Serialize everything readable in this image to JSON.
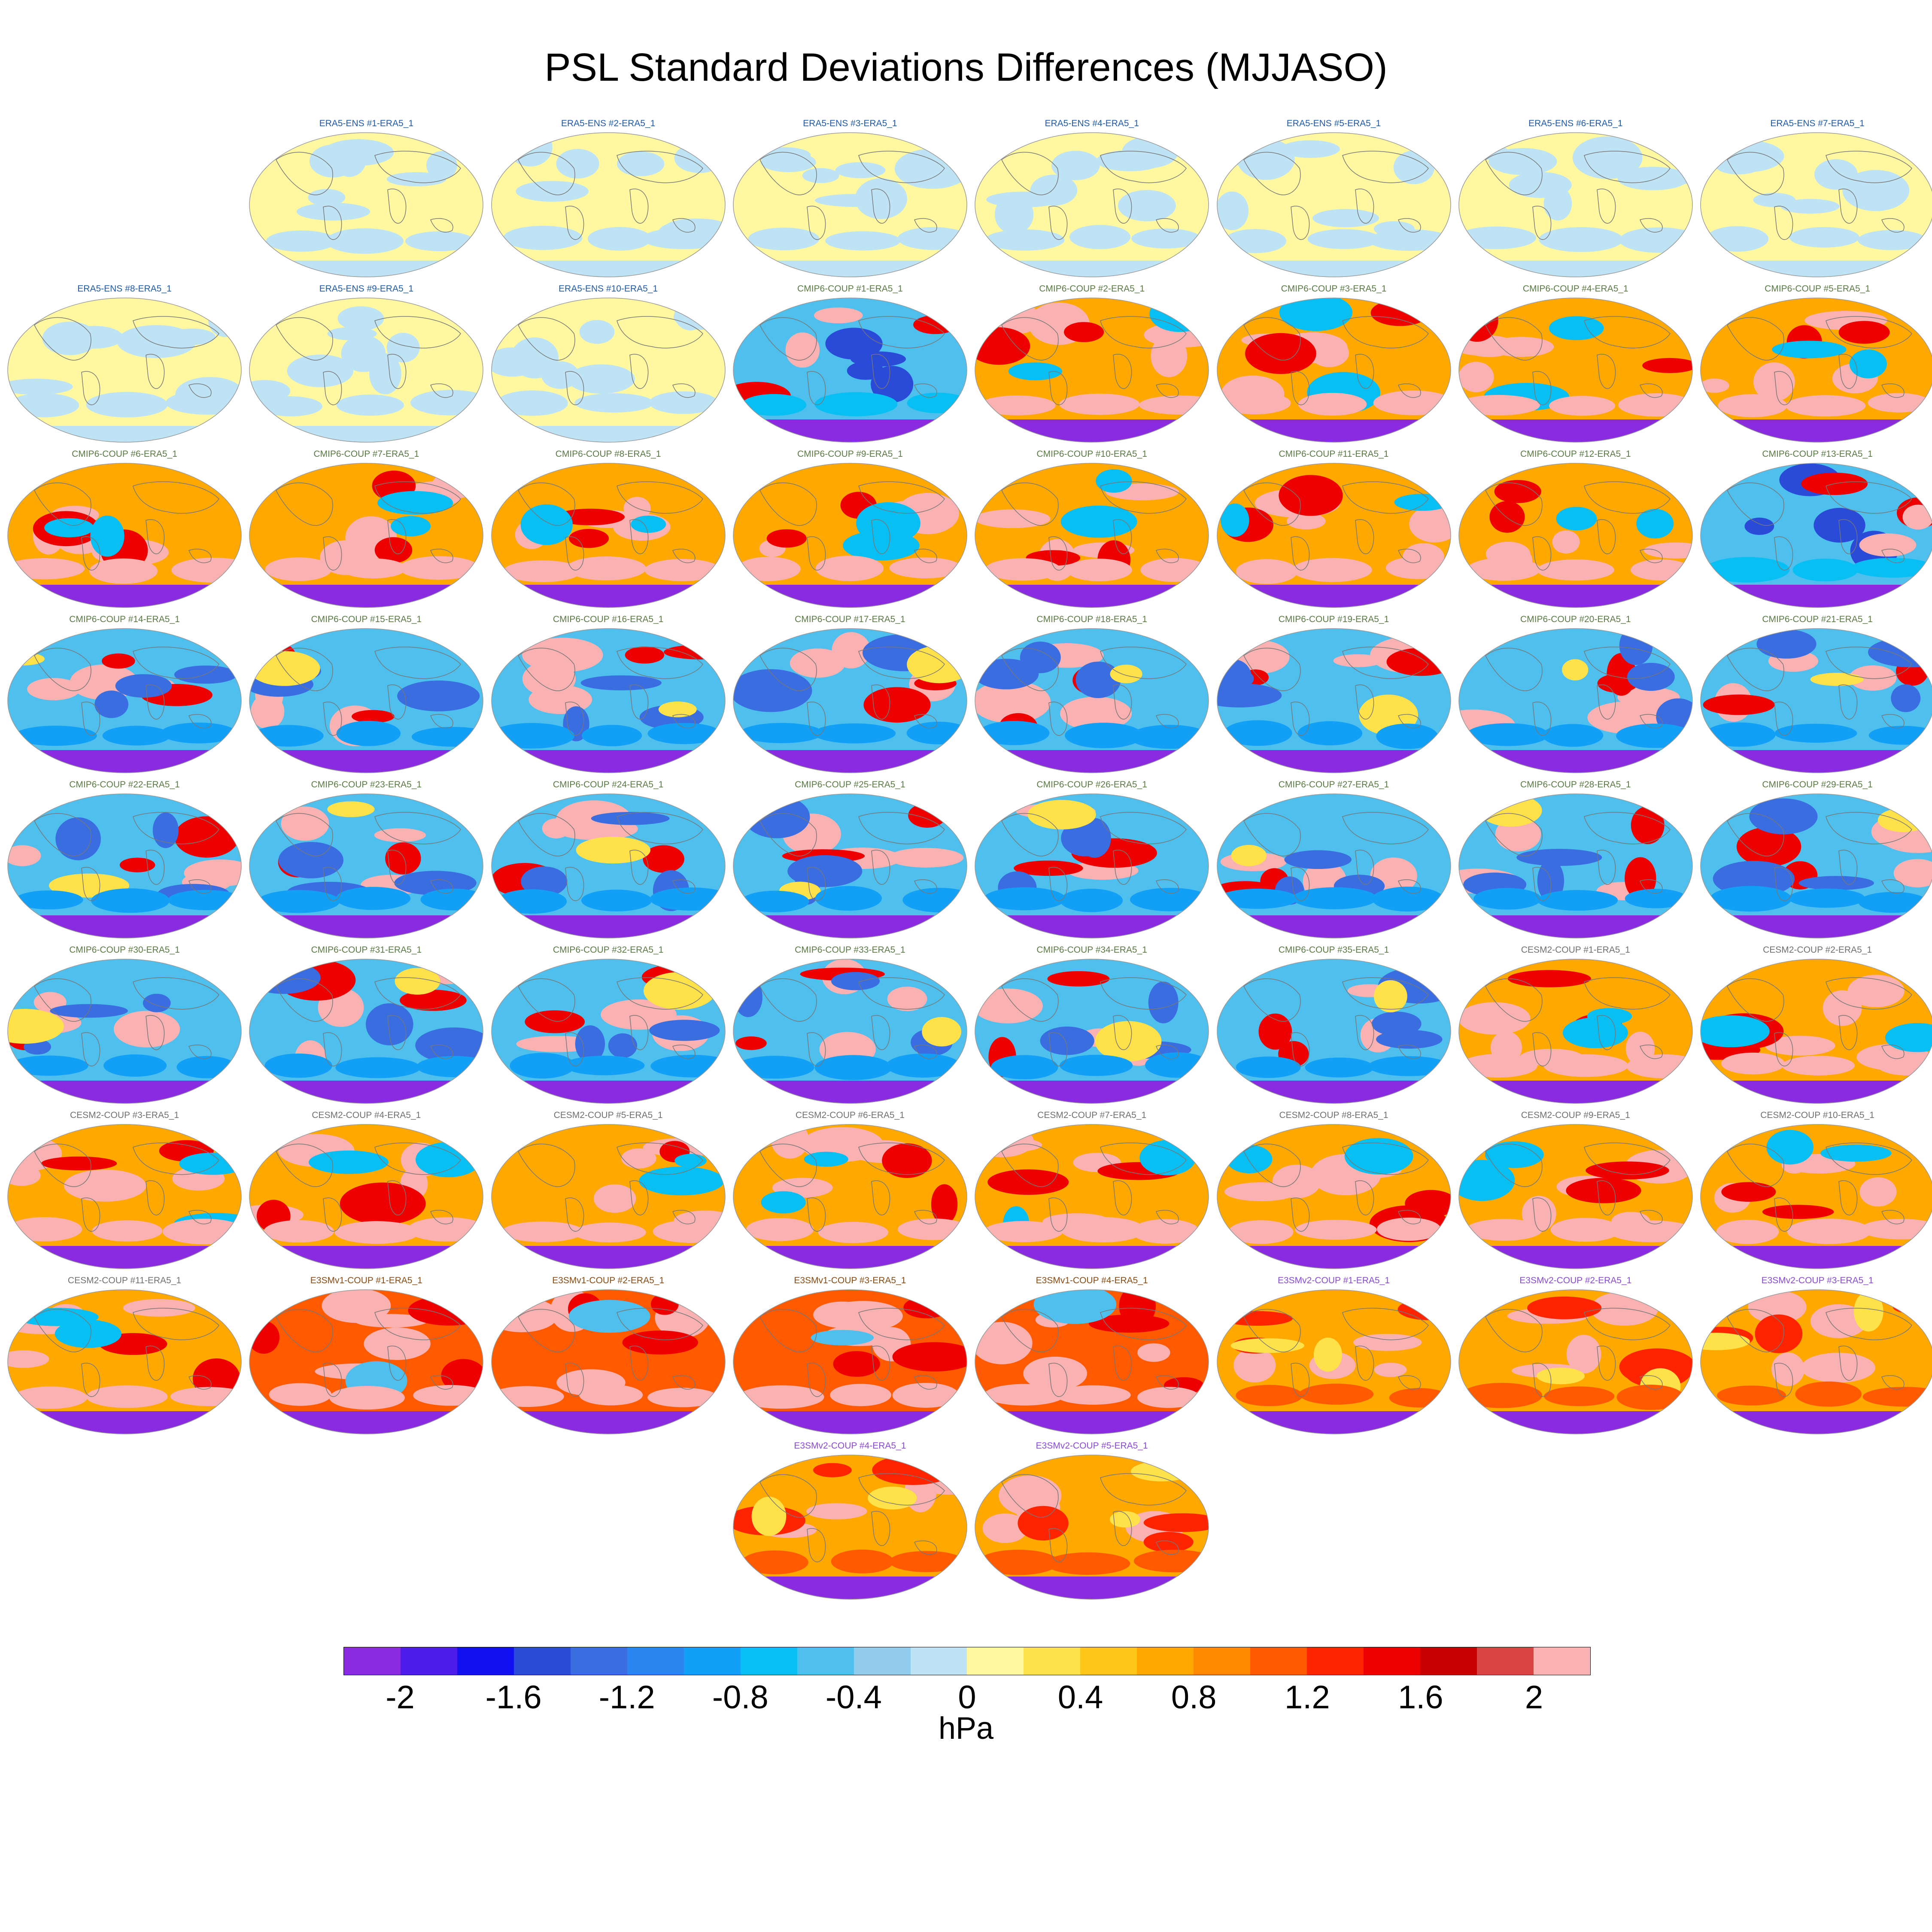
{
  "title": "PSL Standard Deviations Differences (MJJASO)",
  "chart_data": {
    "type": "heatmap",
    "title": "PSL Standard Deviations Differences (MJJASO)",
    "colorbar": {
      "units": "hPa",
      "tick_labels": [
        "-2",
        "-1.6",
        "-1.2",
        "-0.8",
        "-0.4",
        "0",
        "0.4",
        "0.8",
        "1.2",
        "1.6",
        "2"
      ],
      "tick_values": [
        -2,
        -1.6,
        -1.2,
        -0.8,
        -0.4,
        0,
        0.4,
        0.8,
        1.2,
        1.6,
        2
      ],
      "range": [
        -2.2,
        2.2
      ],
      "colors": [
        "#8a2be2",
        "#4c1de8",
        "#1010f0",
        "#2a4ad8",
        "#3a6ee0",
        "#2a86f0",
        "#12a0f6",
        "#08bff4",
        "#4fc0ee",
        "#92ccec",
        "#bde3f5",
        "#fff8a0",
        "#ffe24a",
        "#ffc61a",
        "#ffa800",
        "#ff8a00",
        "#ff5a00",
        "#ff2400",
        "#ee0000",
        "#c80000",
        "#dc4444",
        "#f9b1b1"
      ]
    },
    "groups": [
      {
        "name": "ERA5-ENS",
        "title_color": "#1f5aa8"
      },
      {
        "name": "CMIP6-COUP",
        "title_color": "#5a7a44"
      },
      {
        "name": "CESM2-COUP",
        "title_color": "#707070"
      },
      {
        "name": "E3SMv1-COUP",
        "title_color": "#8a4a10"
      },
      {
        "name": "E3SMv2-COUP",
        "title_color": "#8a4ad8"
      }
    ],
    "panels": [
      {
        "row": 0,
        "col": 1,
        "label": "ERA5-ENS   #1-ERA5_1",
        "group": 0,
        "pattern": "era5"
      },
      {
        "row": 0,
        "col": 2,
        "label": "ERA5-ENS   #2-ERA5_1",
        "group": 0,
        "pattern": "era5"
      },
      {
        "row": 0,
        "col": 3,
        "label": "ERA5-ENS   #3-ERA5_1",
        "group": 0,
        "pattern": "era5"
      },
      {
        "row": 0,
        "col": 4,
        "label": "ERA5-ENS   #4-ERA5_1",
        "group": 0,
        "pattern": "era5"
      },
      {
        "row": 0,
        "col": 5,
        "label": "ERA5-ENS   #5-ERA5_1",
        "group": 0,
        "pattern": "era5"
      },
      {
        "row": 0,
        "col": 6,
        "label": "ERA5-ENS   #6-ERA5_1",
        "group": 0,
        "pattern": "era5"
      },
      {
        "row": 0,
        "col": 7,
        "label": "ERA5-ENS   #7-ERA5_1",
        "group": 0,
        "pattern": "era5"
      },
      {
        "row": 1,
        "col": 0,
        "label": "ERA5-ENS   #8-ERA5_1",
        "group": 0,
        "pattern": "era5"
      },
      {
        "row": 1,
        "col": 1,
        "label": "ERA5-ENS   #9-ERA5_1",
        "group": 0,
        "pattern": "era5"
      },
      {
        "row": 1,
        "col": 2,
        "label": "ERA5-ENS   #10-ERA5_1",
        "group": 0,
        "pattern": "era5"
      },
      {
        "row": 1,
        "col": 3,
        "label": "CMIP6-COUP  #1-ERA5_1",
        "group": 1,
        "pattern": "cool"
      },
      {
        "row": 1,
        "col": 4,
        "label": "CMIP6-COUP  #2-ERA5_1",
        "group": 1,
        "pattern": "warm"
      },
      {
        "row": 1,
        "col": 5,
        "label": "CMIP6-COUP  #3-ERA5_1",
        "group": 1,
        "pattern": "warm"
      },
      {
        "row": 1,
        "col": 6,
        "label": "CMIP6-COUP  #4-ERA5_1",
        "group": 1,
        "pattern": "warm"
      },
      {
        "row": 1,
        "col": 7,
        "label": "CMIP6-COUP  #5-ERA5_1",
        "group": 1,
        "pattern": "warm"
      },
      {
        "row": 2,
        "col": 0,
        "label": "CMIP6-COUP  #6-ERA5_1",
        "group": 1,
        "pattern": "warm"
      },
      {
        "row": 2,
        "col": 1,
        "label": "CMIP6-COUP  #7-ERA5_1",
        "group": 1,
        "pattern": "warm"
      },
      {
        "row": 2,
        "col": 2,
        "label": "CMIP6-COUP  #8-ERA5_1",
        "group": 1,
        "pattern": "warm"
      },
      {
        "row": 2,
        "col": 3,
        "label": "CMIP6-COUP  #9-ERA5_1",
        "group": 1,
        "pattern": "warm"
      },
      {
        "row": 2,
        "col": 4,
        "label": "CMIP6-COUP  #10-ERA5_1",
        "group": 1,
        "pattern": "warm"
      },
      {
        "row": 2,
        "col": 5,
        "label": "CMIP6-COUP  #11-ERA5_1",
        "group": 1,
        "pattern": "warm"
      },
      {
        "row": 2,
        "col": 6,
        "label": "CMIP6-COUP  #12-ERA5_1",
        "group": 1,
        "pattern": "warm"
      },
      {
        "row": 2,
        "col": 7,
        "label": "CMIP6-COUP  #13-ERA5_1",
        "group": 1,
        "pattern": "cool"
      },
      {
        "row": 3,
        "col": 0,
        "label": "CMIP6-COUP  #14-ERA5_1",
        "group": 1,
        "pattern": "mixed"
      },
      {
        "row": 3,
        "col": 1,
        "label": "CMIP6-COUP  #15-ERA5_1",
        "group": 1,
        "pattern": "mixed"
      },
      {
        "row": 3,
        "col": 2,
        "label": "CMIP6-COUP  #16-ERA5_1",
        "group": 1,
        "pattern": "mixed"
      },
      {
        "row": 3,
        "col": 3,
        "label": "CMIP6-COUP  #17-ERA5_1",
        "group": 1,
        "pattern": "mixed"
      },
      {
        "row": 3,
        "col": 4,
        "label": "CMIP6-COUP  #18-ERA5_1",
        "group": 1,
        "pattern": "mixed"
      },
      {
        "row": 3,
        "col": 5,
        "label": "CMIP6-COUP  #19-ERA5_1",
        "group": 1,
        "pattern": "mixed"
      },
      {
        "row": 3,
        "col": 6,
        "label": "CMIP6-COUP  #20-ERA5_1",
        "group": 1,
        "pattern": "mixed"
      },
      {
        "row": 3,
        "col": 7,
        "label": "CMIP6-COUP  #21-ERA5_1",
        "group": 1,
        "pattern": "mixed"
      },
      {
        "row": 4,
        "col": 0,
        "label": "CMIP6-COUP  #22-ERA5_1",
        "group": 1,
        "pattern": "mixed"
      },
      {
        "row": 4,
        "col": 1,
        "label": "CMIP6-COUP  #23-ERA5_1",
        "group": 1,
        "pattern": "mixed"
      },
      {
        "row": 4,
        "col": 2,
        "label": "CMIP6-COUP  #24-ERA5_1",
        "group": 1,
        "pattern": "mixed"
      },
      {
        "row": 4,
        "col": 3,
        "label": "CMIP6-COUP  #25-ERA5_1",
        "group": 1,
        "pattern": "mixed"
      },
      {
        "row": 4,
        "col": 4,
        "label": "CMIP6-COUP  #26-ERA5_1",
        "group": 1,
        "pattern": "mixed"
      },
      {
        "row": 4,
        "col": 5,
        "label": "CMIP6-COUP  #27-ERA5_1",
        "group": 1,
        "pattern": "mixed"
      },
      {
        "row": 4,
        "col": 6,
        "label": "CMIP6-COUP  #28-ERA5_1",
        "group": 1,
        "pattern": "mixed"
      },
      {
        "row": 4,
        "col": 7,
        "label": "CMIP6-COUP  #29-ERA5_1",
        "group": 1,
        "pattern": "mixed"
      },
      {
        "row": 5,
        "col": 0,
        "label": "CMIP6-COUP  #30-ERA5_1",
        "group": 1,
        "pattern": "mixed"
      },
      {
        "row": 5,
        "col": 1,
        "label": "CMIP6-COUP  #31-ERA5_1",
        "group": 1,
        "pattern": "mixed"
      },
      {
        "row": 5,
        "col": 2,
        "label": "CMIP6-COUP  #32-ERA5_1",
        "group": 1,
        "pattern": "mixed"
      },
      {
        "row": 5,
        "col": 3,
        "label": "CMIP6-COUP  #33-ERA5_1",
        "group": 1,
        "pattern": "mixed"
      },
      {
        "row": 5,
        "col": 4,
        "label": "CMIP6-COUP  #34-ERA5_1",
        "group": 1,
        "pattern": "mixed"
      },
      {
        "row": 5,
        "col": 5,
        "label": "CMIP6-COUP  #35-ERA5_1",
        "group": 1,
        "pattern": "mixed"
      },
      {
        "row": 5,
        "col": 6,
        "label": "CESM2-COUP  #1-ERA5_1",
        "group": 2,
        "pattern": "warm"
      },
      {
        "row": 5,
        "col": 7,
        "label": "CESM2-COUP  #2-ERA5_1",
        "group": 2,
        "pattern": "warm"
      },
      {
        "row": 6,
        "col": 0,
        "label": "CESM2-COUP  #3-ERA5_1",
        "group": 2,
        "pattern": "warm"
      },
      {
        "row": 6,
        "col": 1,
        "label": "CESM2-COUP  #4-ERA5_1",
        "group": 2,
        "pattern": "warm"
      },
      {
        "row": 6,
        "col": 2,
        "label": "CESM2-COUP  #5-ERA5_1",
        "group": 2,
        "pattern": "warm"
      },
      {
        "row": 6,
        "col": 3,
        "label": "CESM2-COUP  #6-ERA5_1",
        "group": 2,
        "pattern": "warm"
      },
      {
        "row": 6,
        "col": 4,
        "label": "CESM2-COUP  #7-ERA5_1",
        "group": 2,
        "pattern": "warm"
      },
      {
        "row": 6,
        "col": 5,
        "label": "CESM2-COUP  #8-ERA5_1",
        "group": 2,
        "pattern": "warm"
      },
      {
        "row": 6,
        "col": 6,
        "label": "CESM2-COUP  #9-ERA5_1",
        "group": 2,
        "pattern": "warm"
      },
      {
        "row": 6,
        "col": 7,
        "label": "CESM2-COUP  #10-ERA5_1",
        "group": 2,
        "pattern": "warm"
      },
      {
        "row": 7,
        "col": 0,
        "label": "CESM2-COUP  #11-ERA5_1",
        "group": 2,
        "pattern": "warm"
      },
      {
        "row": 7,
        "col": 1,
        "label": "E3SMv1-COUP #1-ERA5_1",
        "group": 3,
        "pattern": "hot"
      },
      {
        "row": 7,
        "col": 2,
        "label": "E3SMv1-COUP #2-ERA5_1",
        "group": 3,
        "pattern": "hot"
      },
      {
        "row": 7,
        "col": 3,
        "label": "E3SMv1-COUP #3-ERA5_1",
        "group": 3,
        "pattern": "hot"
      },
      {
        "row": 7,
        "col": 4,
        "label": "E3SMv1-COUP #4-ERA5_1",
        "group": 3,
        "pattern": "hot"
      },
      {
        "row": 7,
        "col": 5,
        "label": "E3SMv2-COUP #1-ERA5_1",
        "group": 4,
        "pattern": "hot2"
      },
      {
        "row": 7,
        "col": 6,
        "label": "E3SMv2-COUP #2-ERA5_1",
        "group": 4,
        "pattern": "hot2"
      },
      {
        "row": 7,
        "col": 7,
        "label": "E3SMv2-COUP #3-ERA5_1",
        "group": 4,
        "pattern": "hot2"
      },
      {
        "row": 8,
        "col": 3,
        "label": "E3SMv2-COUP #4-ERA5_1",
        "group": 4,
        "pattern": "hot2"
      },
      {
        "row": 8,
        "col": 4,
        "label": "E3SMv2-COUP #5-ERA5_1",
        "group": 4,
        "pattern": "hot2"
      }
    ]
  }
}
